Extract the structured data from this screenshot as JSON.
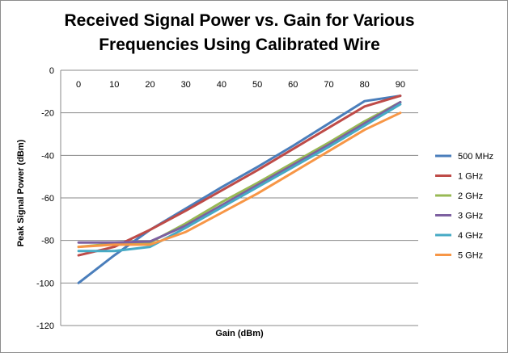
{
  "chart_data": {
    "type": "line",
    "title": "Received Signal Power vs. Gain for Various Frequencies Using Calibrated Wire",
    "title_lines": [
      "Received Signal Power vs. Gain for Various",
      "Frequencies Using Calibrated Wire"
    ],
    "xlabel": "Gain  (dBm)",
    "ylabel": "Peak Signal Power (dBm)",
    "categories": [
      "0",
      "10",
      "20",
      "30",
      "40",
      "50",
      "60",
      "70",
      "80",
      "90"
    ],
    "ylim": [
      -120,
      0
    ],
    "yticks": [
      "0",
      "-20",
      "-40",
      "-60",
      "-80",
      "-100",
      "-120"
    ],
    "grid": true,
    "legend_position": "right",
    "series": [
      {
        "name": "500 MHz",
        "color": "#4a7ebb",
        "values": [
          -100,
          -87,
          -75,
          -65,
          -55,
          -45.5,
          -35.5,
          -25,
          -14.5,
          -12
        ]
      },
      {
        "name": "1 GHz",
        "color": "#be4b48",
        "values": [
          -87,
          -83,
          -75,
          -66,
          -56.5,
          -47,
          -37,
          -27,
          -17,
          -12
        ]
      },
      {
        "name": "2 GHz",
        "color": "#98b954",
        "values": [
          -83,
          -81.5,
          -81,
          -72,
          -62,
          -53,
          -43.5,
          -34,
          -24,
          -15
        ]
      },
      {
        "name": "3 GHz",
        "color": "#7d60a0",
        "values": [
          -81,
          -81,
          -80.5,
          -73,
          -63.5,
          -54,
          -44.5,
          -35,
          -25,
          -15
        ]
      },
      {
        "name": "4 GHz",
        "color": "#46aac5",
        "values": [
          -85,
          -85,
          -83,
          -74,
          -64.5,
          -55,
          -45.5,
          -36,
          -26,
          -16
        ]
      },
      {
        "name": "5 GHz",
        "color": "#f79646",
        "values": [
          -83,
          -82,
          -82,
          -76,
          -67,
          -58,
          -48,
          -38,
          -28,
          -20
        ]
      }
    ]
  }
}
